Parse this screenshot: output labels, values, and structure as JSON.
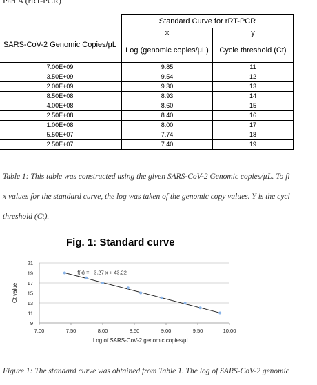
{
  "part_label": "Part A (rRT-PCR)",
  "table": {
    "title": "Standard Curve for rRT-PCR",
    "x_header": "x",
    "y_header": "y",
    "col1_header": "SARS-CoV-2 Genomic Copies/µL",
    "col2_header": "Log (genomic copies/µL)",
    "col3_header": "Cycle threshold (Ct)",
    "rows": [
      {
        "copies": "7.00E+09",
        "log": "9.85",
        "ct": "11"
      },
      {
        "copies": "3.50E+09",
        "log": "9.54",
        "ct": "12"
      },
      {
        "copies": "2.00E+09",
        "log": "9.30",
        "ct": "13"
      },
      {
        "copies": "8.50E+08",
        "log": "8.93",
        "ct": "14"
      },
      {
        "copies": "4.00E+08",
        "log": "8.60",
        "ct": "15"
      },
      {
        "copies": "2.50E+08",
        "log": "8.40",
        "ct": "16"
      },
      {
        "copies": "1.00E+08",
        "log": "8.00",
        "ct": "17"
      },
      {
        "copies": "5.50E+07",
        "log": "7.74",
        "ct": "18"
      },
      {
        "copies": "2.50E+07",
        "log": "7.40",
        "ct": "19"
      }
    ]
  },
  "captions": {
    "table_line1": "Table 1: This table was constructed using the given SARS-CoV-2 Genomic copies/µL. To fi",
    "table_line2": "x values for the standard curve, the log was taken of the genomic copy values. Y is the cycl",
    "table_line3": "threshold (Ct).",
    "figure_line1": "Figure 1: The standard curve was obtained from Table 1. The log of SARS-CoV-2 genomic"
  },
  "chart_data": {
    "type": "scatter",
    "title": "Fig. 1: Standard curve",
    "xlabel": "Log of SARS-CoV-2 genomic copies/µL",
    "ylabel": "Ct value",
    "xlim": [
      7.0,
      10.0
    ],
    "ylim": [
      9,
      21
    ],
    "x_ticks": [
      "7.00",
      "7.50",
      "8.00",
      "8.50",
      "9.00",
      "9.50",
      "10.00"
    ],
    "y_ticks": [
      "9",
      "11",
      "13",
      "15",
      "17",
      "19",
      "21"
    ],
    "grid": "horizontal",
    "trendline": {
      "slope": -3.27,
      "intercept": 43.22,
      "label": "f(x) = - 3.27 x + 43.22"
    },
    "points": [
      {
        "x": 9.85,
        "y": 11
      },
      {
        "x": 9.54,
        "y": 12
      },
      {
        "x": 9.3,
        "y": 13
      },
      {
        "x": 8.93,
        "y": 14
      },
      {
        "x": 8.6,
        "y": 15
      },
      {
        "x": 8.4,
        "y": 16
      },
      {
        "x": 8.0,
        "y": 17
      },
      {
        "x": 7.74,
        "y": 18
      },
      {
        "x": 7.4,
        "y": 19
      }
    ],
    "point_color": "#8ab4e8",
    "line_color": "#222222"
  }
}
